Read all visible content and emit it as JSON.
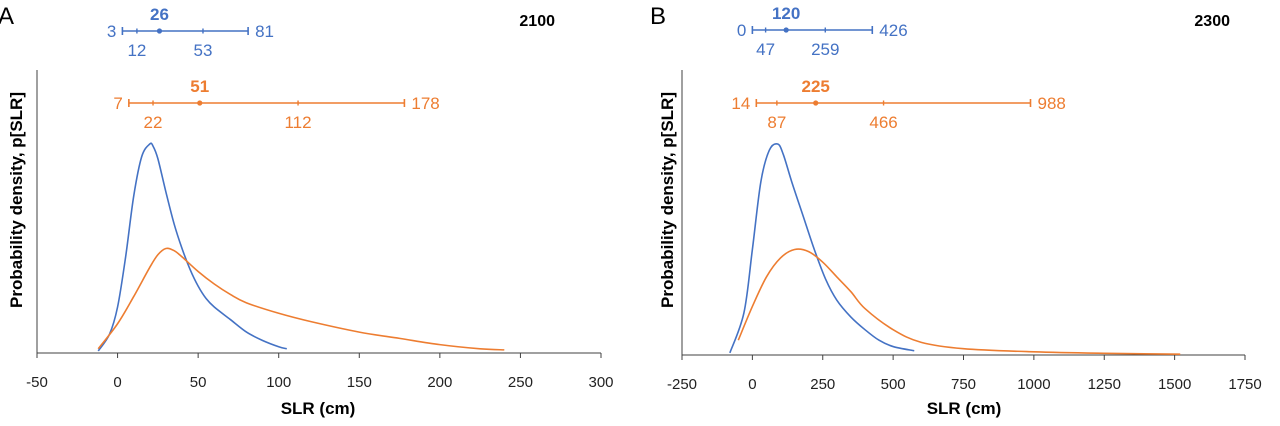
{
  "colors": {
    "blue": "#4472C4",
    "orange": "#ED7D31",
    "axis": "#404040",
    "text": "#000000"
  },
  "chart_data": [
    {
      "type": "line",
      "panel_letter": "A",
      "year_label": "2100",
      "xlabel": "SLR (cm)",
      "ylabel": "Probability density, p[SLR]",
      "xlim": [
        -50,
        300
      ],
      "xticks": [
        -50,
        0,
        50,
        100,
        150,
        200,
        250,
        300
      ],
      "grid": false,
      "ranges": [
        {
          "color": "blue",
          "min": 3,
          "low": 12,
          "median": 26,
          "high": 53,
          "max": 81,
          "min_label": "3",
          "low_label": "12",
          "median_label": "26",
          "high_label": "53",
          "max_label": "81"
        },
        {
          "color": "orange",
          "min": 7,
          "low": 22,
          "median": 51,
          "high": 112,
          "max": 178,
          "min_label": "7",
          "low_label": "22",
          "median_label": "51",
          "high_label": "112",
          "max_label": "178"
        }
      ],
      "series": [
        {
          "color": "blue",
          "x": [
            -12,
            -5,
            0,
            5,
            10,
            15,
            20,
            22,
            25,
            30,
            35,
            40,
            45,
            50,
            55,
            60,
            70,
            80,
            90,
            100,
            105
          ],
          "y": [
            0.01,
            0.09,
            0.22,
            0.46,
            0.75,
            0.94,
            1.0,
            0.99,
            0.93,
            0.77,
            0.62,
            0.5,
            0.4,
            0.32,
            0.26,
            0.22,
            0.16,
            0.1,
            0.06,
            0.03,
            0.02
          ]
        },
        {
          "color": "orange",
          "x": [
            -12,
            0,
            10,
            20,
            25,
            30,
            35,
            40,
            50,
            60,
            70,
            80,
            100,
            120,
            150,
            175,
            200,
            225,
            240
          ],
          "y": [
            0.02,
            0.14,
            0.27,
            0.41,
            0.47,
            0.5,
            0.49,
            0.46,
            0.39,
            0.33,
            0.28,
            0.24,
            0.19,
            0.15,
            0.1,
            0.07,
            0.04,
            0.02,
            0.015
          ]
        }
      ]
    },
    {
      "type": "line",
      "panel_letter": "B",
      "year_label": "2300",
      "xlabel": "SLR (cm)",
      "ylabel": "Probability density, p[SLR]",
      "xlim": [
        -250,
        1750
      ],
      "xticks": [
        -250,
        0,
        250,
        500,
        750,
        1000,
        1250,
        1500,
        1750
      ],
      "grid": false,
      "ranges": [
        {
          "color": "blue",
          "min": 0,
          "low": 47,
          "median": 120,
          "high": 259,
          "max": 426,
          "min_label": "0",
          "low_label": "47",
          "median_label": "120",
          "high_label": "259",
          "max_label": "426"
        },
        {
          "color": "orange",
          "min": 14,
          "low": 87,
          "median": 225,
          "high": 466,
          "max": 988,
          "min_label": "14",
          "low_label": "87",
          "median_label": "225",
          "high_label": "466",
          "max_label": "988"
        }
      ],
      "series": [
        {
          "color": "blue",
          "x": [
            -80,
            -30,
            0,
            30,
            60,
            90,
            110,
            140,
            180,
            220,
            260,
            300,
            350,
            400,
            450,
            500,
            575
          ],
          "y": [
            0.01,
            0.2,
            0.5,
            0.82,
            0.97,
            1.0,
            0.95,
            0.82,
            0.66,
            0.5,
            0.36,
            0.26,
            0.18,
            0.12,
            0.07,
            0.04,
            0.02
          ]
        },
        {
          "color": "orange",
          "x": [
            -50,
            0,
            50,
            100,
            150,
            200,
            250,
            300,
            350,
            400,
            500,
            600,
            750,
            1000,
            1250,
            1520
          ],
          "y": [
            0.07,
            0.23,
            0.37,
            0.46,
            0.5,
            0.49,
            0.44,
            0.37,
            0.3,
            0.22,
            0.12,
            0.06,
            0.03,
            0.015,
            0.008,
            0.004
          ]
        }
      ]
    }
  ]
}
